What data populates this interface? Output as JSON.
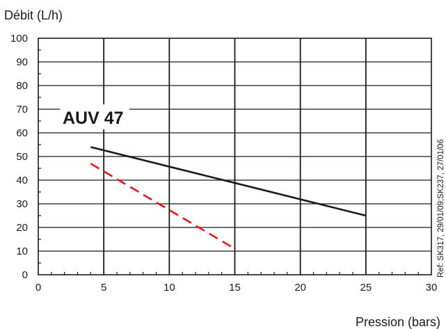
{
  "chart_data": {
    "type": "line",
    "ylabel": "Débit (L/h)",
    "xlabel": "Pression (bars)",
    "annotation": "AUV 47",
    "reference": "Ref: SK317, 29/01/09;SK237, 27/01/06",
    "xlim": [
      0,
      30
    ],
    "ylim": [
      0,
      100
    ],
    "x_ticks": [
      0,
      5,
      10,
      15,
      20,
      25,
      30
    ],
    "y_ticks": [
      0,
      10,
      20,
      30,
      40,
      50,
      60,
      70,
      80,
      90,
      100
    ],
    "grid": true,
    "series": [
      {
        "color": "#1a1a1a",
        "style": "solid",
        "x": [
          4,
          25
        ],
        "y": [
          54,
          25
        ]
      },
      {
        "color": "#e8141b",
        "style": "dashed",
        "x": [
          4,
          15
        ],
        "y": [
          47,
          11
        ]
      }
    ]
  }
}
